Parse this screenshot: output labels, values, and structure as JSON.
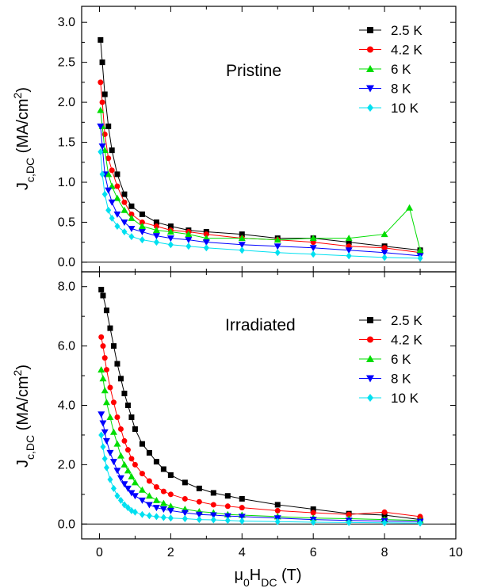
{
  "colors": {
    "2.5 K": "#000000",
    "4.2 K": "#ff0000",
    "6 K": "#00dd00",
    "8 K": "#0000ff",
    "10 K": "#00e0f0"
  },
  "chart_data": [
    {
      "type": "scatter",
      "panel_label": "Pristine",
      "ylabel": {
        "base": "J",
        "sub": "c,DC",
        "text": " (MA/cm",
        "sup": "2",
        "end": ")"
      },
      "xlim": [
        -0.5,
        10
      ],
      "ylim": [
        -0.12,
        3.2
      ],
      "yticks": [
        "0.0",
        "0.5",
        "1.0",
        "1.5",
        "2.0",
        "2.5",
        "3.0"
      ],
      "ytick_values": [
        0.0,
        0.5,
        1.0,
        1.5,
        2.0,
        2.5,
        3.0
      ],
      "legend_position": "top-right",
      "series": [
        {
          "name": "2.5 K",
          "marker": "square",
          "x": [
            0.03,
            0.08,
            0.15,
            0.25,
            0.35,
            0.5,
            0.7,
            0.9,
            1.2,
            1.6,
            2.0,
            2.5,
            3.0,
            4.0,
            5.0,
            6.0,
            7.0,
            8.0,
            9.0
          ],
          "y": [
            2.78,
            2.5,
            2.1,
            1.7,
            1.4,
            1.1,
            0.85,
            0.7,
            0.6,
            0.5,
            0.45,
            0.4,
            0.38,
            0.35,
            0.3,
            0.3,
            0.25,
            0.2,
            0.15
          ]
        },
        {
          "name": "4.2 K",
          "marker": "circle",
          "x": [
            0.03,
            0.08,
            0.15,
            0.25,
            0.35,
            0.5,
            0.7,
            0.9,
            1.2,
            1.6,
            2.0,
            2.5,
            3.0,
            4.0,
            5.0,
            6.0,
            7.0,
            8.0,
            9.0
          ],
          "y": [
            2.25,
            2.0,
            1.6,
            1.3,
            1.15,
            0.95,
            0.75,
            0.6,
            0.5,
            0.45,
            0.4,
            0.38,
            0.35,
            0.3,
            0.28,
            0.25,
            0.2,
            0.18,
            0.12
          ]
        },
        {
          "name": "6 K",
          "marker": "triangle-up",
          "x": [
            0.03,
            0.08,
            0.15,
            0.25,
            0.35,
            0.5,
            0.7,
            0.9,
            1.2,
            1.6,
            2.0,
            2.5,
            3.0,
            4.0,
            5.0,
            6.0,
            7.0,
            8.0,
            8.7,
            9.0
          ],
          "y": [
            1.9,
            1.7,
            1.4,
            1.1,
            0.95,
            0.8,
            0.65,
            0.55,
            0.45,
            0.4,
            0.38,
            0.35,
            0.3,
            0.3,
            0.28,
            0.3,
            0.3,
            0.35,
            0.68,
            0.15
          ]
        },
        {
          "name": "8 K",
          "marker": "triangle-down",
          "x": [
            0.03,
            0.08,
            0.15,
            0.25,
            0.35,
            0.5,
            0.7,
            0.9,
            1.2,
            1.6,
            2.0,
            2.5,
            3.0,
            4.0,
            5.0,
            6.0,
            7.0,
            8.0,
            9.0
          ],
          "y": [
            1.7,
            1.45,
            1.1,
            0.9,
            0.75,
            0.6,
            0.5,
            0.42,
            0.38,
            0.33,
            0.3,
            0.28,
            0.25,
            0.22,
            0.2,
            0.18,
            0.15,
            0.12,
            0.08
          ]
        },
        {
          "name": "10 K",
          "marker": "diamond",
          "x": [
            0.03,
            0.08,
            0.15,
            0.25,
            0.35,
            0.5,
            0.7,
            0.9,
            1.2,
            1.6,
            2.0,
            2.5,
            3.0,
            4.0,
            5.0,
            6.0,
            7.0,
            8.0,
            9.0
          ],
          "y": [
            1.38,
            1.1,
            0.85,
            0.65,
            0.55,
            0.45,
            0.38,
            0.32,
            0.28,
            0.25,
            0.22,
            0.2,
            0.18,
            0.15,
            0.12,
            0.1,
            0.08,
            0.06,
            0.05
          ]
        }
      ]
    },
    {
      "type": "scatter",
      "panel_label": "Irradiated",
      "xlabel": {
        "pre": "μ",
        "sub1": "0",
        "mid": "H",
        "sub2": "DC",
        "post": " (T)"
      },
      "ylabel": {
        "base": "J",
        "sub": "c,DC",
        "text": " (MA/cm",
        "sup": "2",
        "end": ")"
      },
      "xlim": [
        -0.5,
        10
      ],
      "ylim": [
        -0.5,
        8.5
      ],
      "xticks": [
        "0",
        "2",
        "4",
        "6",
        "8",
        "10"
      ],
      "xtick_values": [
        0,
        2,
        4,
        6,
        8,
        10
      ],
      "yticks": [
        "0.0",
        "2.0",
        "4.0",
        "6.0",
        "8.0"
      ],
      "ytick_values": [
        0.0,
        2.0,
        4.0,
        6.0,
        8.0
      ],
      "legend_position": "top-right",
      "series": [
        {
          "name": "2.5 K",
          "marker": "square",
          "x": [
            0.05,
            0.1,
            0.2,
            0.3,
            0.4,
            0.5,
            0.6,
            0.7,
            0.8,
            0.9,
            1.0,
            1.2,
            1.4,
            1.6,
            1.8,
            2.0,
            2.4,
            2.8,
            3.2,
            3.6,
            4.0,
            5.0,
            6.0,
            7.0,
            8.0,
            9.0
          ],
          "y": [
            7.9,
            7.7,
            7.2,
            6.6,
            6.0,
            5.4,
            4.9,
            4.4,
            4.0,
            3.6,
            3.2,
            2.7,
            2.4,
            2.1,
            1.85,
            1.65,
            1.4,
            1.2,
            1.05,
            0.95,
            0.85,
            0.65,
            0.5,
            0.35,
            0.3,
            0.15
          ]
        },
        {
          "name": "4.2 K",
          "marker": "circle",
          "x": [
            0.05,
            0.1,
            0.15,
            0.2,
            0.3,
            0.4,
            0.5,
            0.6,
            0.7,
            0.8,
            0.9,
            1.0,
            1.2,
            1.4,
            1.6,
            1.8,
            2.0,
            2.4,
            2.8,
            3.2,
            3.6,
            4.0,
            5.0,
            6.0,
            7.0,
            8.0,
            9.0
          ],
          "y": [
            6.3,
            6.0,
            5.6,
            5.2,
            4.6,
            4.1,
            3.6,
            3.2,
            2.8,
            2.5,
            2.2,
            2.0,
            1.7,
            1.45,
            1.25,
            1.1,
            1.0,
            0.85,
            0.75,
            0.65,
            0.6,
            0.55,
            0.45,
            0.38,
            0.32,
            0.4,
            0.25
          ]
        },
        {
          "name": "6 K",
          "marker": "triangle-up",
          "x": [
            0.05,
            0.1,
            0.15,
            0.2,
            0.3,
            0.4,
            0.5,
            0.6,
            0.7,
            0.8,
            0.9,
            1.0,
            1.2,
            1.4,
            1.6,
            1.8,
            2.0,
            2.4,
            2.8,
            3.2,
            3.6,
            4.0,
            5.0,
            6.0,
            7.0,
            8.0,
            9.0
          ],
          "y": [
            5.2,
            4.9,
            4.5,
            4.1,
            3.6,
            3.1,
            2.7,
            2.3,
            2.0,
            1.8,
            1.6,
            1.4,
            1.15,
            0.95,
            0.8,
            0.7,
            0.6,
            0.5,
            0.42,
            0.38,
            0.32,
            0.3,
            0.25,
            0.2,
            0.18,
            0.15,
            0.12
          ]
        },
        {
          "name": "8 K",
          "marker": "triangle-down",
          "x": [
            0.05,
            0.1,
            0.15,
            0.2,
            0.3,
            0.4,
            0.5,
            0.6,
            0.7,
            0.8,
            0.9,
            1.0,
            1.2,
            1.4,
            1.6,
            1.8,
            2.0,
            2.4,
            2.8,
            3.2,
            3.6,
            4.0,
            5.0,
            6.0,
            7.0,
            8.0,
            9.0
          ],
          "y": [
            3.7,
            3.4,
            3.1,
            2.8,
            2.4,
            2.1,
            1.8,
            1.55,
            1.35,
            1.2,
            1.05,
            0.95,
            0.8,
            0.65,
            0.55,
            0.5,
            0.45,
            0.38,
            0.32,
            0.3,
            0.27,
            0.25,
            0.2,
            0.15,
            0.12,
            0.1,
            0.08
          ]
        },
        {
          "name": "10 K",
          "marker": "diamond",
          "x": [
            0.05,
            0.1,
            0.15,
            0.2,
            0.3,
            0.4,
            0.5,
            0.6,
            0.7,
            0.8,
            0.9,
            1.0,
            1.2,
            1.4,
            1.6,
            1.8,
            2.0,
            2.4,
            2.8,
            3.2,
            3.6,
            4.0,
            5.0,
            6.0,
            7.0,
            8.0,
            9.0
          ],
          "y": [
            3.0,
            2.6,
            2.2,
            1.9,
            1.5,
            1.2,
            0.95,
            0.8,
            0.65,
            0.55,
            0.45,
            0.4,
            0.32,
            0.28,
            0.25,
            0.22,
            0.2,
            0.18,
            0.15,
            0.14,
            0.12,
            0.1,
            0.08,
            0.06,
            0.05,
            0.04,
            0.03
          ]
        }
      ]
    }
  ]
}
